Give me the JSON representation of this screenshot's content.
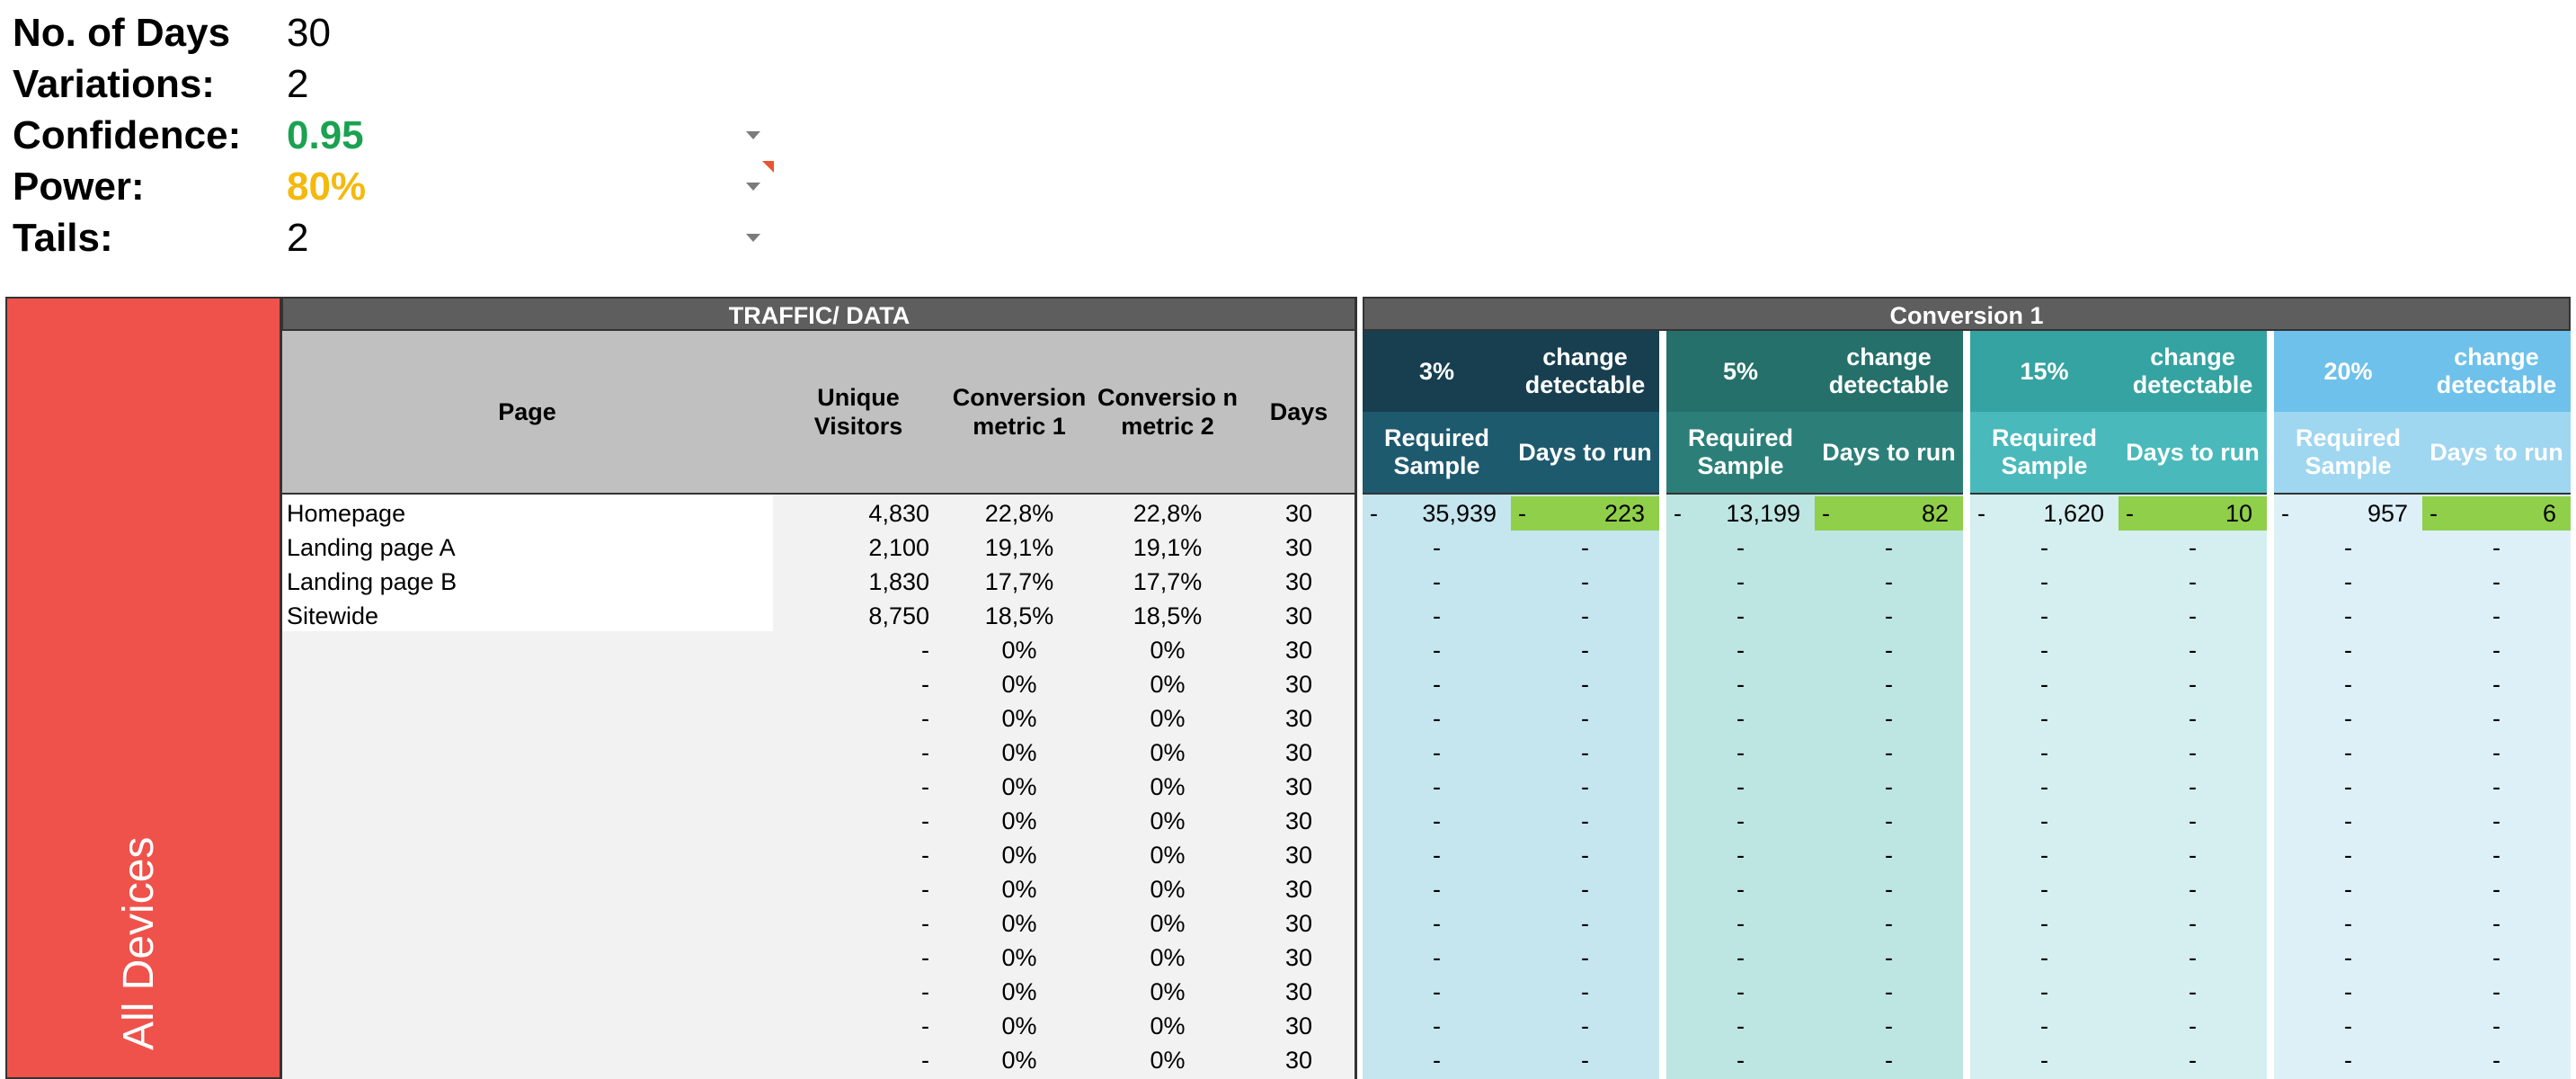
{
  "params": [
    {
      "label": "No. of Days",
      "value": "30",
      "style": "plain",
      "dropdown": false
    },
    {
      "label": "Variations:",
      "value": "2",
      "style": "plain",
      "dropdown": false
    },
    {
      "label": "Confidence:",
      "value": "0.95",
      "style": "green",
      "dropdown": true
    },
    {
      "label": "Power:",
      "value": "80%",
      "style": "yellow",
      "dropdown": true
    },
    {
      "label": "Tails:",
      "value": "2",
      "style": "plain",
      "dropdown": true
    }
  ],
  "side_label": "All Devices",
  "traffic": {
    "group_title": "TRAFFIC/ DATA",
    "headers": {
      "page": "Page",
      "unique": "Unique Visitors",
      "conv1": "Conversion metric 1",
      "conv2": "Conversio n metric 2",
      "days": "Days"
    }
  },
  "conversion": {
    "group_title": "Conversion 1",
    "change_label": "change detectable",
    "required_label": "Required Sample",
    "days_label": "Days to run",
    "blocks": [
      {
        "pct": "3%",
        "pct_color": "#173f4f",
        "change_color": "#173f4f",
        "sub_color": "#1e5a6e",
        "body_color": "#c5e5ef"
      },
      {
        "pct": "5%",
        "pct_color": "#25706b",
        "change_color": "#25706b",
        "sub_color": "#2c7f79",
        "body_color": "#bde5e2"
      },
      {
        "pct": "15%",
        "pct_color": "#35a3a1",
        "change_color": "#35a3a1",
        "sub_color": "#49b9bb",
        "body_color": "#d5eeef"
      },
      {
        "pct": "20%",
        "pct_color": "#6ec1ea",
        "change_color": "#6ec1ea",
        "sub_color": "#9fd6f0",
        "body_color": "#ddf0f8"
      }
    ]
  },
  "rows": [
    {
      "page": "Homepage",
      "unique": "4,830",
      "conv1": "22,8%",
      "conv2": "22,8%",
      "days": "30",
      "results": [
        {
          "req": "35,939",
          "days": "223"
        },
        {
          "req": "13,199",
          "days": "82"
        },
        {
          "req": "1,620",
          "days": "10"
        },
        {
          "req": "957",
          "days": "6"
        }
      ]
    },
    {
      "page": "Landing page A",
      "unique": "2,100",
      "conv1": "19,1%",
      "conv2": "19,1%",
      "days": "30"
    },
    {
      "page": "Landing page B",
      "unique": "1,830",
      "conv1": "17,7%",
      "conv2": "17,7%",
      "days": "30"
    },
    {
      "page": "Sitewide",
      "unique": "8,750",
      "conv1": "18,5%",
      "conv2": "18,5%",
      "days": "30"
    },
    {
      "page": "",
      "unique": "-",
      "conv1": "0%",
      "conv2": "0%",
      "days": "30"
    },
    {
      "page": "",
      "unique": "-",
      "conv1": "0%",
      "conv2": "0%",
      "days": "30"
    },
    {
      "page": "",
      "unique": "-",
      "conv1": "0%",
      "conv2": "0%",
      "days": "30"
    },
    {
      "page": "",
      "unique": "-",
      "conv1": "0%",
      "conv2": "0%",
      "days": "30"
    },
    {
      "page": "",
      "unique": "-",
      "conv1": "0%",
      "conv2": "0%",
      "days": "30"
    },
    {
      "page": "",
      "unique": "-",
      "conv1": "0%",
      "conv2": "0%",
      "days": "30"
    },
    {
      "page": "",
      "unique": "-",
      "conv1": "0%",
      "conv2": "0%",
      "days": "30"
    },
    {
      "page": "",
      "unique": "-",
      "conv1": "0%",
      "conv2": "0%",
      "days": "30"
    },
    {
      "page": "",
      "unique": "-",
      "conv1": "0%",
      "conv2": "0%",
      "days": "30"
    },
    {
      "page": "",
      "unique": "-",
      "conv1": "0%",
      "conv2": "0%",
      "days": "30"
    },
    {
      "page": "",
      "unique": "-",
      "conv1": "0%",
      "conv2": "0%",
      "days": "30"
    },
    {
      "page": "",
      "unique": "-",
      "conv1": "0%",
      "conv2": "0%",
      "days": "30"
    },
    {
      "page": "",
      "unique": "-",
      "conv1": "0%",
      "conv2": "0%",
      "days": "30"
    }
  ],
  "dash": "-",
  "colors": {
    "side": "#ef524b",
    "group_header": "#5e5e5e",
    "traffic_header": "#c0c0c0",
    "traffic_body": "#f2f2f2",
    "green_value": "#8fcf4a",
    "confidence": "#1aa251",
    "power": "#f4b90d"
  }
}
